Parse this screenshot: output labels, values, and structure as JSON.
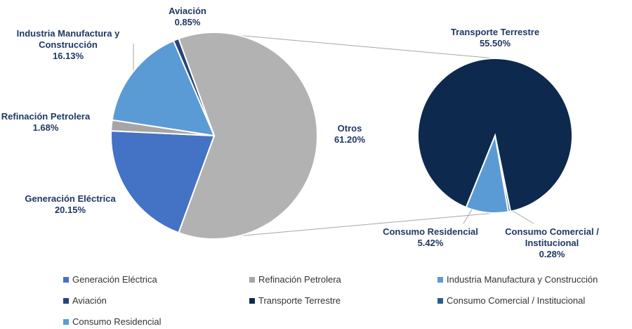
{
  "chart_data": {
    "type": "pie-of-pie",
    "categories": [
      "Generación Eléctrica",
      "Refinación Petrolera",
      "Industria Manufactura y Construcción",
      "Aviación"
    ],
    "values": [
      20.15,
      1.68,
      16.13,
      0.85
    ],
    "value_labels": [
      "20.15%",
      "1.68%",
      "16.13%",
      "0.85%"
    ],
    "colors": [
      "#4472c4",
      "#a5a5a5",
      "#5b9bd5",
      "#264478"
    ],
    "other": {
      "label": "Otros",
      "value": 61.2,
      "value_label": "61.20%",
      "color": "#b2b2b2"
    },
    "secondary": {
      "categories": [
        "Transporte Terrestre",
        "Consumo Comercial / Institucional",
        "Consumo Residencial"
      ],
      "values": [
        55.5,
        0.28,
        5.42
      ],
      "value_labels": [
        "55.50%",
        "0.28%",
        "5.42%"
      ],
      "colors": [
        "#0d2a4e",
        "#255e91",
        "#5b9bd5"
      ]
    },
    "legend": "bottom"
  }
}
